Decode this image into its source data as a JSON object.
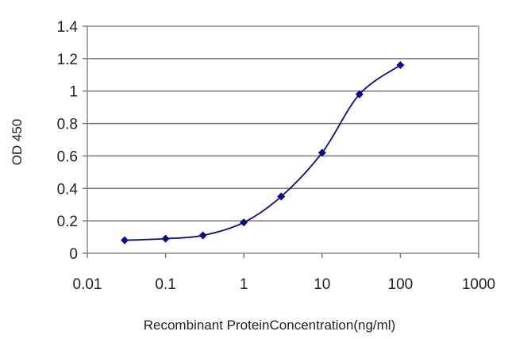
{
  "chart_data": {
    "type": "line",
    "title": "",
    "xlabel": "Recombinant ProteinConcentration(ng/ml)",
    "ylabel": "OD 450",
    "x_scale": "log",
    "xlim": [
      0.01,
      1000
    ],
    "ylim": [
      0,
      1.4
    ],
    "x_ticks": [
      "0.01",
      "0.1",
      "1",
      "10",
      "100",
      "1000"
    ],
    "y_ticks": [
      "0",
      "0.2",
      "0.4",
      "0.6",
      "0.8",
      "1",
      "1.2",
      "1.4"
    ],
    "grid": "horizontal",
    "legend": "none",
    "series": [
      {
        "color": "#0a0a8c",
        "marker": "diamond",
        "x": [
          0.03,
          0.1,
          0.3,
          1,
          3,
          10,
          30,
          100
        ],
        "y": [
          0.08,
          0.09,
          0.11,
          0.19,
          0.35,
          0.62,
          0.98,
          1.16
        ]
      }
    ]
  }
}
